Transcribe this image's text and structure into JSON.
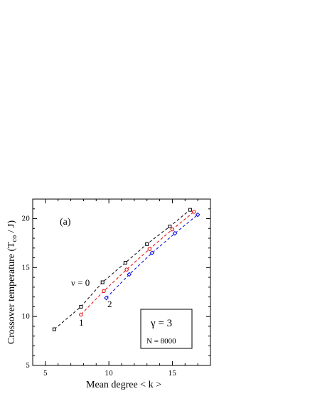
{
  "chart_data": {
    "type": "line",
    "xlabel": "Mean  degree   < k >",
    "ylabel": "Crossover  temperature   (T",
    "ylabel_sub": "co",
    "ylabel_tail": "  /  J)",
    "xlim": [
      4,
      18
    ],
    "ylim": [
      5,
      22
    ],
    "xticks": [
      5,
      10,
      15
    ],
    "yticks": [
      5,
      10,
      15,
      20
    ],
    "grid": false,
    "panel_label": "(a)",
    "gamma_label": "γ = 3",
    "n_label": "N = 8000",
    "series": [
      {
        "name": "ν = 0",
        "color": "#000000",
        "marker": "square",
        "x": [
          5.7,
          7.8,
          9.5,
          11.3,
          13.0,
          14.8,
          16.4
        ],
        "y": [
          8.7,
          11.0,
          13.5,
          15.5,
          17.4,
          19.2,
          20.9
        ]
      },
      {
        "name": "1",
        "color": "#e00000",
        "marker": "circle",
        "x": [
          7.8,
          9.6,
          11.4,
          13.2,
          15.0,
          16.7
        ],
        "y": [
          10.2,
          12.6,
          14.8,
          16.9,
          18.9,
          20.7
        ]
      },
      {
        "name": "2",
        "color": "#0000e0",
        "marker": "diamond",
        "x": [
          9.8,
          11.6,
          13.4,
          15.2,
          17.0
        ],
        "y": [
          11.9,
          14.3,
          16.5,
          18.5,
          20.4
        ]
      }
    ]
  }
}
